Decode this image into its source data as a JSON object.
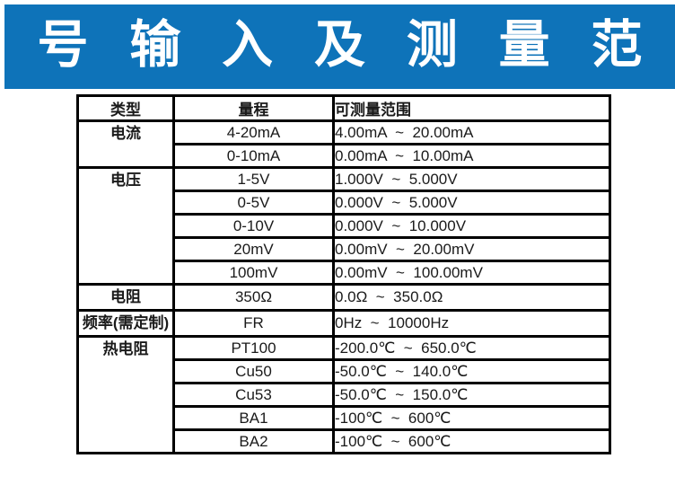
{
  "banner": {
    "title": "信 号 输 入 及 测 量 范 围",
    "bg_color": "#0e73b9",
    "text_color": "#ffffff"
  },
  "table": {
    "headers": {
      "type": "类型",
      "range": "量程",
      "measurable": "可测量范围"
    },
    "groups": [
      {
        "type": "电流",
        "rows": [
          {
            "range": "4-20mA",
            "measurable": "4.00mA  ~  20.00mA"
          },
          {
            "range": "0-10mA",
            "measurable": "0.00mA  ~  10.00mA"
          }
        ]
      },
      {
        "type": "电压",
        "rows": [
          {
            "range": "1-5V",
            "measurable": "1.000V  ~  5.000V"
          },
          {
            "range": "0-5V",
            "measurable": "0.000V  ~  5.000V"
          },
          {
            "range": "0-10V",
            "measurable": "0.000V  ~  10.000V"
          },
          {
            "range": "20mV",
            "measurable": "0.00mV  ~  20.00mV"
          },
          {
            "range": "100mV",
            "measurable": "0.00mV  ~  100.00mV"
          }
        ]
      },
      {
        "type": "电阻",
        "rows": [
          {
            "range": "350Ω",
            "measurable": "0.0Ω  ~  350.0Ω"
          }
        ]
      },
      {
        "type": "频率(需定制)",
        "rows": [
          {
            "range": "FR",
            "measurable": "0Hz  ~  10000Hz"
          }
        ]
      },
      {
        "type": "热电阻",
        "rows": [
          {
            "range": "PT100",
            "measurable": "-200.0℃  ~  650.0℃"
          },
          {
            "range": "Cu50",
            "measurable": "-50.0℃  ~  140.0℃"
          },
          {
            "range": "Cu53",
            "measurable": "-50.0℃  ~  150.0℃"
          },
          {
            "range": "BA1",
            "measurable": "-100℃  ~  600℃"
          },
          {
            "range": "BA2",
            "measurable": "-100℃  ~  600℃"
          }
        ]
      }
    ]
  }
}
